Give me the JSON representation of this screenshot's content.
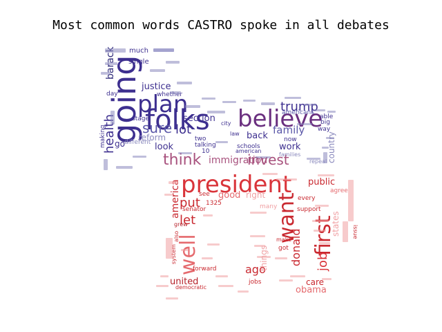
{
  "chart_data": {
    "type": "wordcloud",
    "title": "Most common words CASTRO spoke in all debates",
    "palette": {
      "top_blue": [
        "#3d2f8f",
        "#2f2a7a",
        "#5a57a8",
        "#8a89bd",
        "#6b63b0"
      ],
      "top_purple": "#6a2f7f",
      "top_pink": "#a8527e",
      "bottom_red": [
        "#d9343a",
        "#c9282f",
        "#e56a6e",
        "#b51f27",
        "#f0a0a3"
      ]
    },
    "words": [
      {
        "text": "going",
        "weight": 60,
        "group": "top"
      },
      {
        "text": "folks",
        "weight": 58,
        "group": "top"
      },
      {
        "text": "believe",
        "weight": 55,
        "group": "top"
      },
      {
        "text": "plan",
        "weight": 52,
        "group": "top"
      },
      {
        "text": "sure",
        "weight": 34,
        "group": "top"
      },
      {
        "text": "health",
        "weight": 32,
        "group": "top"
      },
      {
        "text": "trump",
        "weight": 30,
        "group": "top"
      },
      {
        "text": "lot",
        "weight": 29,
        "group": "top"
      },
      {
        "text": "think",
        "weight": 36,
        "group": "top"
      },
      {
        "text": "invest",
        "weight": 30,
        "group": "top"
      },
      {
        "text": "family",
        "weight": 26,
        "group": "top"
      },
      {
        "text": "justice",
        "weight": 22,
        "group": "top"
      },
      {
        "text": "barack",
        "weight": 22,
        "group": "top"
      },
      {
        "text": "immigration",
        "weight": 22,
        "group": "top"
      },
      {
        "text": "section",
        "weight": 20,
        "group": "top"
      },
      {
        "text": "back",
        "weight": 20,
        "group": "top"
      },
      {
        "text": "look",
        "weight": 20,
        "group": "top"
      },
      {
        "text": "work",
        "weight": 20,
        "group": "top"
      },
      {
        "text": "reform",
        "weight": 18,
        "group": "top"
      },
      {
        "text": "country",
        "weight": 18,
        "group": "top"
      },
      {
        "text": "much",
        "weight": 16,
        "group": "top"
      },
      {
        "text": "single",
        "weight": 16,
        "group": "top"
      },
      {
        "text": "americans",
        "weight": 14,
        "group": "top"
      },
      {
        "text": "stage",
        "weight": 14,
        "group": "top"
      },
      {
        "text": "different",
        "weight": 14,
        "group": "top"
      },
      {
        "text": "now",
        "weight": 14,
        "group": "top"
      },
      {
        "text": "able",
        "weight": 14,
        "group": "top"
      },
      {
        "text": "big",
        "weight": 14,
        "group": "top"
      },
      {
        "text": "way",
        "weight": 13,
        "group": "top"
      },
      {
        "text": "talking",
        "weight": 14,
        "group": "top"
      },
      {
        "text": "schools",
        "weight": 14,
        "group": "top"
      },
      {
        "text": "american",
        "weight": 14,
        "group": "top"
      },
      {
        "text": "families",
        "weight": 12,
        "group": "top"
      },
      {
        "text": "repeal",
        "weight": 12,
        "group": "top"
      },
      {
        "text": "whether",
        "weight": 14,
        "group": "top"
      },
      {
        "text": "day",
        "weight": 13,
        "group": "top"
      },
      {
        "text": "making",
        "weight": 13,
        "group": "top"
      },
      {
        "text": "two",
        "weight": 13,
        "group": "top"
      },
      {
        "text": "city",
        "weight": 13,
        "group": "top"
      },
      {
        "text": "law",
        "weight": 13,
        "group": "top"
      },
      {
        "text": "go",
        "weight": 16,
        "group": "top"
      },
      {
        "text": "10",
        "weight": 12,
        "group": "top"
      },
      {
        "text": "president",
        "weight": 64,
        "group": "bottom"
      },
      {
        "text": "want",
        "weight": 50,
        "group": "bottom"
      },
      {
        "text": "first",
        "weight": 46,
        "group": "bottom"
      },
      {
        "text": "well",
        "weight": 46,
        "group": "bottom"
      },
      {
        "text": "job",
        "weight": 32,
        "group": "bottom"
      },
      {
        "text": "donald",
        "weight": 28,
        "group": "bottom"
      },
      {
        "text": "put",
        "weight": 28,
        "group": "bottom"
      },
      {
        "text": "let",
        "weight": 28,
        "group": "bottom"
      },
      {
        "text": "ago",
        "weight": 26,
        "group": "bottom"
      },
      {
        "text": "public",
        "weight": 22,
        "group": "bottom"
      },
      {
        "text": "america",
        "weight": 22,
        "group": "bottom"
      },
      {
        "text": "good",
        "weight": 20,
        "group": "bottom"
      },
      {
        "text": "right",
        "weight": 18,
        "group": "bottom"
      },
      {
        "text": "united",
        "weight": 20,
        "group": "bottom"
      },
      {
        "text": "obama",
        "weight": 20,
        "group": "bottom"
      },
      {
        "text": "care",
        "weight": 20,
        "group": "bottom"
      },
      {
        "text": "things",
        "weight": 20,
        "group": "bottom"
      },
      {
        "text": "states",
        "weight": 18,
        "group": "bottom"
      },
      {
        "text": "senator",
        "weight": 14,
        "group": "bottom"
      },
      {
        "text": "agree",
        "weight": 14,
        "group": "bottom"
      },
      {
        "text": "every",
        "weight": 14,
        "group": "bottom"
      },
      {
        "text": "support",
        "weight": 14,
        "group": "bottom"
      },
      {
        "text": "forward",
        "weight": 13,
        "group": "bottom"
      },
      {
        "text": "many",
        "weight": 13,
        "group": "bottom"
      },
      {
        "text": "jobs",
        "weight": 12,
        "group": "bottom"
      },
      {
        "text": "system",
        "weight": 12,
        "group": "bottom"
      },
      {
        "text": "democratic",
        "weight": 12,
        "group": "bottom"
      },
      {
        "text": "issue",
        "weight": 12,
        "group": "bottom"
      },
      {
        "text": "got",
        "weight": 12,
        "group": "bottom"
      },
      {
        "text": "1325",
        "weight": 12,
        "group": "bottom"
      },
      {
        "text": "see",
        "weight": 12,
        "group": "bottom"
      },
      {
        "text": "also",
        "weight": 12,
        "group": "bottom"
      },
      {
        "text": "grew",
        "weight": 11,
        "group": "bottom"
      },
      {
        "text": "make",
        "weight": 11,
        "group": "bottom"
      }
    ]
  }
}
